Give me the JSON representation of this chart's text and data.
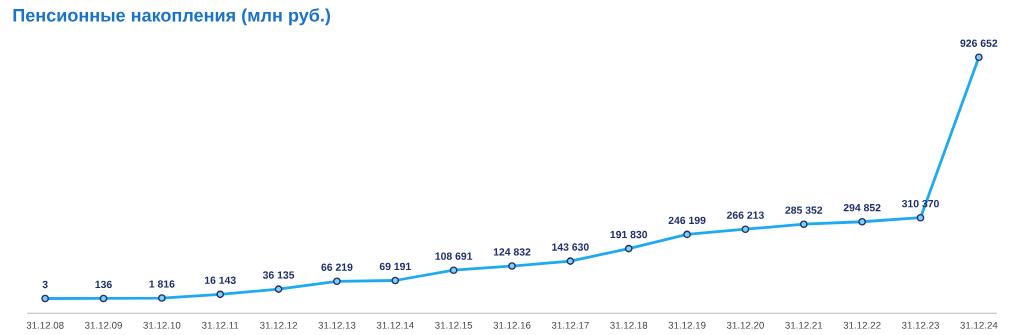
{
  "chart_data": {
    "type": "line",
    "title": "Пенсионные накопления (млн руб.)",
    "categories": [
      "31.12.08",
      "31.12.09",
      "31.12.10",
      "31.12.11",
      "31.12.12",
      "31.12.13",
      "31.12.14",
      "31.12.15",
      "31.12.16",
      "31.12.17",
      "31.12.18",
      "31.12.19",
      "31.12.20",
      "31.12.21",
      "31.12.22",
      "31.12.23",
      "31.12.24"
    ],
    "values": [
      3,
      136,
      1816,
      16143,
      36135,
      66219,
      69191,
      108691,
      124832,
      143630,
      191830,
      246199,
      266213,
      285352,
      294852,
      310370,
      926652
    ],
    "value_labels": [
      "3",
      "136",
      "1 816",
      "16 143",
      "36 135",
      "66 219",
      "69 191",
      "108 691",
      "124 832",
      "143 630",
      "191 830",
      "246 199",
      "266 213",
      "285 352",
      "294 852",
      "310 370",
      "926 652"
    ],
    "color": "#1eaaf0",
    "marker": "circle",
    "line_style": "solid",
    "grid": false,
    "legend": false
  }
}
